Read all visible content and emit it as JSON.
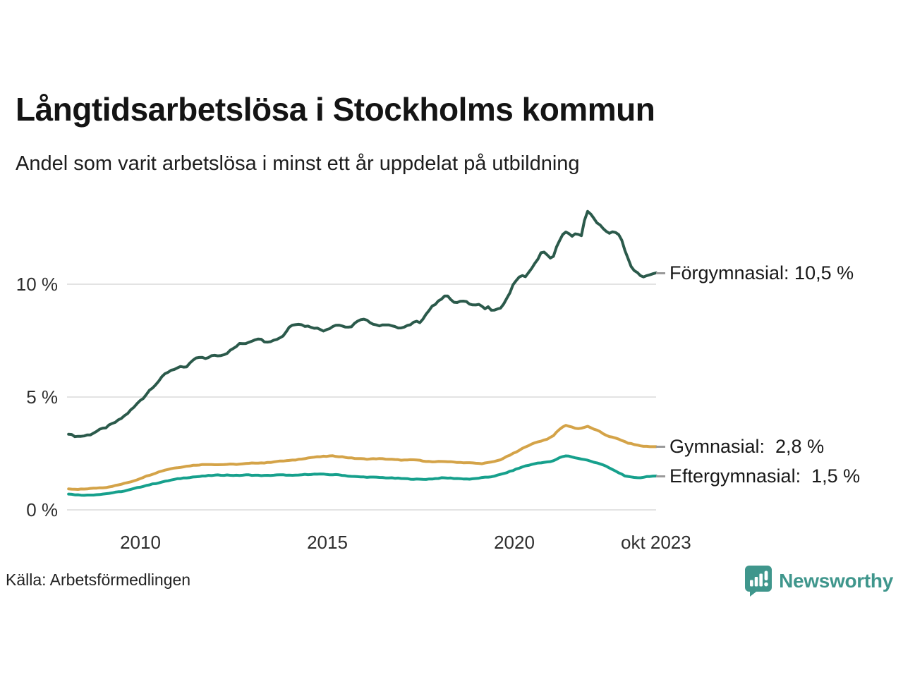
{
  "header": {
    "title": "Långtidsarbetslösa i Stockholms kommun",
    "subtitle": "Andel som varit arbetslösa i minst ett år uppdelat på utbildning"
  },
  "footer": {
    "source": "Källa: Arbetsförmedlingen",
    "brand": "Newsworthy"
  },
  "colors": {
    "grid": "#e3e3e3",
    "axis_text": "#2e2e2e",
    "label_dash": "#999999",
    "brand_teal": "#3f968c",
    "forgymnasial": "#2b5a4b",
    "gymnasial": "#d4a348",
    "eftergymnasial": "#16a08c"
  },
  "chart_data": {
    "type": "line",
    "title": "Långtidsarbetslösa i Stockholms kommun",
    "subtitle": "Andel som varit arbetslösa i minst ett år uppdelat på utbildning",
    "unit": "%",
    "grid": "horizontal",
    "legend_position": "right-end-labels",
    "x_axis": {
      "range": [
        2008.05,
        2023.85
      ],
      "ticks": [
        {
          "value": 2010,
          "label": "2010"
        },
        {
          "value": 2015,
          "label": "2015"
        },
        {
          "value": 2020,
          "label": "2020"
        },
        {
          "value": 2023.79,
          "label": "okt 2023"
        }
      ]
    },
    "y_axis": {
      "range": [
        0,
        13.5
      ],
      "ticks": [
        {
          "value": 0,
          "label": "0 %"
        },
        {
          "value": 5,
          "label": "5 %"
        },
        {
          "value": 10,
          "label": "10 %"
        }
      ]
    },
    "series": [
      {
        "name": "Förgymnasial",
        "end_label": "Förgymnasial: 10,5 %",
        "end_value": 10.5,
        "color": "#2b5a4b",
        "points": [
          [
            2008.08,
            3.35
          ],
          [
            2008.3,
            3.25
          ],
          [
            2008.5,
            3.28
          ],
          [
            2008.67,
            3.35
          ],
          [
            2008.8,
            3.45
          ],
          [
            2008.92,
            3.55
          ],
          [
            2009.1,
            3.67
          ],
          [
            2009.26,
            3.82
          ],
          [
            2009.45,
            4.0
          ],
          [
            2009.64,
            4.25
          ],
          [
            2009.83,
            4.55
          ],
          [
            2010.02,
            4.9
          ],
          [
            2010.11,
            5.0
          ],
          [
            2010.21,
            5.25
          ],
          [
            2010.4,
            5.55
          ],
          [
            2010.53,
            5.78
          ],
          [
            2010.64,
            6.0
          ],
          [
            2010.8,
            6.18
          ],
          [
            2010.95,
            6.27
          ],
          [
            2011.1,
            6.33
          ],
          [
            2011.2,
            6.27
          ],
          [
            2011.3,
            6.45
          ],
          [
            2011.42,
            6.65
          ],
          [
            2011.55,
            6.75
          ],
          [
            2011.67,
            6.78
          ],
          [
            2011.77,
            6.65
          ],
          [
            2011.9,
            6.85
          ],
          [
            2012.1,
            6.85
          ],
          [
            2012.27,
            6.9
          ],
          [
            2012.4,
            7.05
          ],
          [
            2012.53,
            7.2
          ],
          [
            2012.65,
            7.35
          ],
          [
            2012.85,
            7.4
          ],
          [
            2013.05,
            7.55
          ],
          [
            2013.15,
            7.6
          ],
          [
            2013.35,
            7.45
          ],
          [
            2013.55,
            7.5
          ],
          [
            2013.72,
            7.62
          ],
          [
            2013.85,
            7.75
          ],
          [
            2013.95,
            8.05
          ],
          [
            2014.05,
            8.2
          ],
          [
            2014.2,
            8.26
          ],
          [
            2014.4,
            8.15
          ],
          [
            2014.6,
            8.1
          ],
          [
            2014.75,
            8.03
          ],
          [
            2014.9,
            7.95
          ],
          [
            2015.05,
            8.05
          ],
          [
            2015.2,
            8.18
          ],
          [
            2015.35,
            8.2
          ],
          [
            2015.5,
            8.05
          ],
          [
            2015.62,
            8.1
          ],
          [
            2015.75,
            8.3
          ],
          [
            2015.95,
            8.45
          ],
          [
            2016.1,
            8.35
          ],
          [
            2016.3,
            8.2
          ],
          [
            2016.45,
            8.15
          ],
          [
            2016.6,
            8.25
          ],
          [
            2016.8,
            8.1
          ],
          [
            2016.95,
            8.05
          ],
          [
            2017.1,
            8.1
          ],
          [
            2017.25,
            8.25
          ],
          [
            2017.4,
            8.4
          ],
          [
            2017.5,
            8.3
          ],
          [
            2017.65,
            8.7
          ],
          [
            2017.8,
            9.0
          ],
          [
            2017.92,
            9.15
          ],
          [
            2018.05,
            9.35
          ],
          [
            2018.17,
            9.5
          ],
          [
            2018.3,
            9.35
          ],
          [
            2018.45,
            9.15
          ],
          [
            2018.6,
            9.3
          ],
          [
            2018.72,
            9.2
          ],
          [
            2018.85,
            9.1
          ],
          [
            2019.0,
            9.05
          ],
          [
            2019.1,
            9.12
          ],
          [
            2019.22,
            8.9
          ],
          [
            2019.32,
            9.0
          ],
          [
            2019.42,
            8.8
          ],
          [
            2019.55,
            8.88
          ],
          [
            2019.67,
            9.0
          ],
          [
            2019.78,
            9.3
          ],
          [
            2019.9,
            9.65
          ],
          [
            2020.0,
            10.1
          ],
          [
            2020.1,
            10.27
          ],
          [
            2020.2,
            10.37
          ],
          [
            2020.3,
            10.3
          ],
          [
            2020.42,
            10.6
          ],
          [
            2020.55,
            10.9
          ],
          [
            2020.65,
            11.2
          ],
          [
            2020.75,
            11.55
          ],
          [
            2020.85,
            11.25
          ],
          [
            2020.92,
            11.35
          ],
          [
            2021.0,
            10.95
          ],
          [
            2021.13,
            11.65
          ],
          [
            2021.28,
            12.2
          ],
          [
            2021.4,
            12.3
          ],
          [
            2021.55,
            12.15
          ],
          [
            2021.67,
            12.27
          ],
          [
            2021.8,
            12.15
          ],
          [
            2021.93,
            13.25
          ],
          [
            2022.05,
            13.1
          ],
          [
            2022.15,
            12.85
          ],
          [
            2022.3,
            12.6
          ],
          [
            2022.42,
            12.35
          ],
          [
            2022.55,
            12.25
          ],
          [
            2022.67,
            12.35
          ],
          [
            2022.78,
            12.25
          ],
          [
            2022.88,
            11.9
          ],
          [
            2023.0,
            11.3
          ],
          [
            2023.1,
            10.85
          ],
          [
            2023.2,
            10.6
          ],
          [
            2023.33,
            10.45
          ],
          [
            2023.45,
            10.35
          ],
          [
            2023.58,
            10.35
          ],
          [
            2023.67,
            10.45
          ],
          [
            2023.79,
            10.5
          ]
        ]
      },
      {
        "name": "Gymnasial",
        "end_label": "Gymnasial:  2,8 %",
        "end_value": 2.8,
        "color": "#d4a348",
        "points": [
          [
            2008.08,
            0.93
          ],
          [
            2008.3,
            0.9
          ],
          [
            2008.55,
            0.93
          ],
          [
            2008.85,
            0.97
          ],
          [
            2009.1,
            1.0
          ],
          [
            2009.35,
            1.08
          ],
          [
            2009.6,
            1.18
          ],
          [
            2009.85,
            1.3
          ],
          [
            2010.1,
            1.46
          ],
          [
            2010.35,
            1.6
          ],
          [
            2010.6,
            1.74
          ],
          [
            2010.85,
            1.84
          ],
          [
            2011.1,
            1.9
          ],
          [
            2011.35,
            1.96
          ],
          [
            2011.6,
            2.0
          ],
          [
            2011.85,
            2.02
          ],
          [
            2012.1,
            2.0
          ],
          [
            2012.35,
            2.02
          ],
          [
            2012.6,
            2.02
          ],
          [
            2012.85,
            2.05
          ],
          [
            2013.1,
            2.08
          ],
          [
            2013.35,
            2.08
          ],
          [
            2013.6,
            2.14
          ],
          [
            2013.85,
            2.17
          ],
          [
            2014.1,
            2.2
          ],
          [
            2014.35,
            2.27
          ],
          [
            2014.6,
            2.33
          ],
          [
            2014.85,
            2.36
          ],
          [
            2015.1,
            2.39
          ],
          [
            2015.35,
            2.36
          ],
          [
            2015.6,
            2.3
          ],
          [
            2015.85,
            2.27
          ],
          [
            2016.1,
            2.25
          ],
          [
            2016.35,
            2.27
          ],
          [
            2016.6,
            2.25
          ],
          [
            2016.85,
            2.22
          ],
          [
            2017.1,
            2.2
          ],
          [
            2017.35,
            2.22
          ],
          [
            2017.6,
            2.16
          ],
          [
            2017.85,
            2.12
          ],
          [
            2018.1,
            2.15
          ],
          [
            2018.35,
            2.12
          ],
          [
            2018.6,
            2.1
          ],
          [
            2018.85,
            2.08
          ],
          [
            2019.1,
            2.05
          ],
          [
            2019.35,
            2.1
          ],
          [
            2019.6,
            2.2
          ],
          [
            2019.85,
            2.4
          ],
          [
            2020.1,
            2.6
          ],
          [
            2020.3,
            2.8
          ],
          [
            2020.45,
            2.9
          ],
          [
            2020.6,
            3.0
          ],
          [
            2020.75,
            3.07
          ],
          [
            2020.9,
            3.15
          ],
          [
            2021.05,
            3.3
          ],
          [
            2021.2,
            3.55
          ],
          [
            2021.35,
            3.75
          ],
          [
            2021.5,
            3.7
          ],
          [
            2021.65,
            3.6
          ],
          [
            2021.8,
            3.62
          ],
          [
            2021.95,
            3.7
          ],
          [
            2022.1,
            3.6
          ],
          [
            2022.25,
            3.5
          ],
          [
            2022.4,
            3.35
          ],
          [
            2022.55,
            3.25
          ],
          [
            2022.7,
            3.18
          ],
          [
            2022.85,
            3.1
          ],
          [
            2023.0,
            2.98
          ],
          [
            2023.2,
            2.9
          ],
          [
            2023.4,
            2.83
          ],
          [
            2023.6,
            2.8
          ],
          [
            2023.79,
            2.8
          ]
        ]
      },
      {
        "name": "Eftergymnasial",
        "end_label": "Eftergymnasial:  1,5 %",
        "end_value": 1.5,
        "color": "#16a08c",
        "points": [
          [
            2008.08,
            0.7
          ],
          [
            2008.35,
            0.66
          ],
          [
            2008.6,
            0.65
          ],
          [
            2008.85,
            0.68
          ],
          [
            2009.1,
            0.72
          ],
          [
            2009.35,
            0.78
          ],
          [
            2009.6,
            0.84
          ],
          [
            2009.85,
            0.95
          ],
          [
            2010.1,
            1.06
          ],
          [
            2010.35,
            1.15
          ],
          [
            2010.6,
            1.24
          ],
          [
            2010.85,
            1.33
          ],
          [
            2011.1,
            1.4
          ],
          [
            2011.35,
            1.45
          ],
          [
            2011.6,
            1.48
          ],
          [
            2011.85,
            1.52
          ],
          [
            2012.1,
            1.54
          ],
          [
            2012.35,
            1.54
          ],
          [
            2012.6,
            1.52
          ],
          [
            2012.85,
            1.55
          ],
          [
            2013.1,
            1.53
          ],
          [
            2013.35,
            1.52
          ],
          [
            2013.6,
            1.54
          ],
          [
            2013.85,
            1.55
          ],
          [
            2014.1,
            1.52
          ],
          [
            2014.35,
            1.56
          ],
          [
            2014.6,
            1.58
          ],
          [
            2014.85,
            1.58
          ],
          [
            2015.1,
            1.56
          ],
          [
            2015.35,
            1.55
          ],
          [
            2015.6,
            1.49
          ],
          [
            2015.85,
            1.46
          ],
          [
            2016.1,
            1.45
          ],
          [
            2016.35,
            1.44
          ],
          [
            2016.6,
            1.42
          ],
          [
            2016.85,
            1.4
          ],
          [
            2017.1,
            1.38
          ],
          [
            2017.35,
            1.36
          ],
          [
            2017.6,
            1.35
          ],
          [
            2017.85,
            1.38
          ],
          [
            2018.1,
            1.42
          ],
          [
            2018.35,
            1.4
          ],
          [
            2018.6,
            1.38
          ],
          [
            2018.85,
            1.36
          ],
          [
            2019.1,
            1.42
          ],
          [
            2019.35,
            1.46
          ],
          [
            2019.6,
            1.55
          ],
          [
            2019.85,
            1.68
          ],
          [
            2020.1,
            1.83
          ],
          [
            2020.3,
            1.95
          ],
          [
            2020.45,
            2.0
          ],
          [
            2020.6,
            2.07
          ],
          [
            2020.75,
            2.1
          ],
          [
            2020.9,
            2.12
          ],
          [
            2021.05,
            2.17
          ],
          [
            2021.2,
            2.3
          ],
          [
            2021.35,
            2.4
          ],
          [
            2021.5,
            2.37
          ],
          [
            2021.65,
            2.3
          ],
          [
            2021.8,
            2.25
          ],
          [
            2021.95,
            2.2
          ],
          [
            2022.1,
            2.13
          ],
          [
            2022.25,
            2.07
          ],
          [
            2022.4,
            1.97
          ],
          [
            2022.55,
            1.85
          ],
          [
            2022.7,
            1.72
          ],
          [
            2022.85,
            1.6
          ],
          [
            2023.0,
            1.48
          ],
          [
            2023.2,
            1.43
          ],
          [
            2023.4,
            1.43
          ],
          [
            2023.6,
            1.49
          ],
          [
            2023.79,
            1.5
          ]
        ]
      }
    ]
  }
}
